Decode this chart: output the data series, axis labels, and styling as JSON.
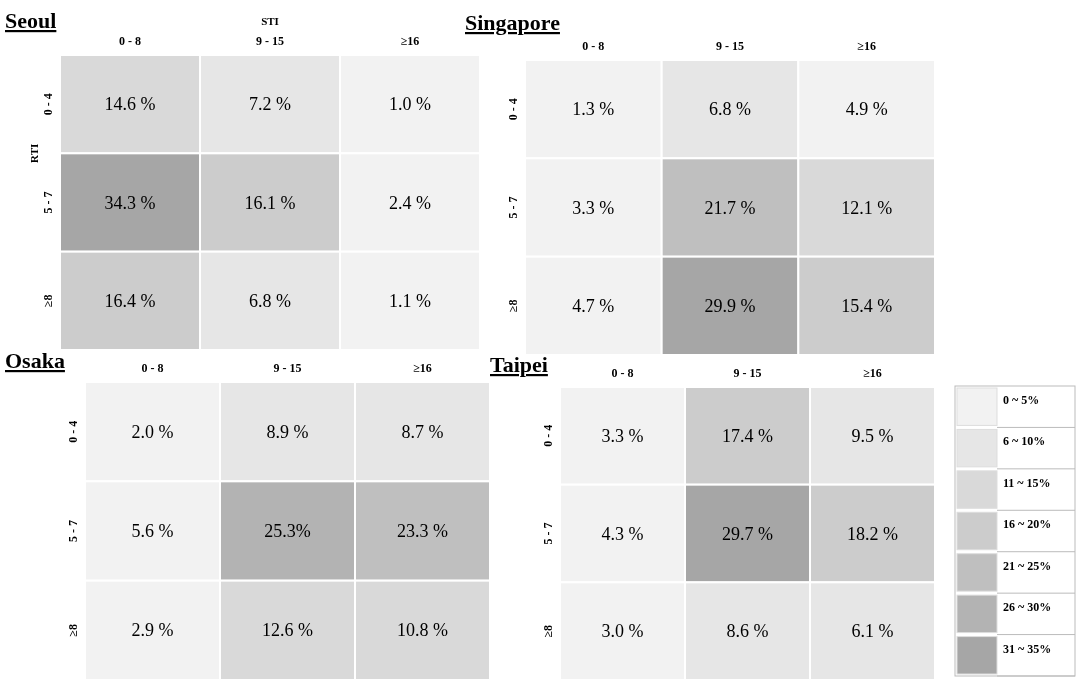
{
  "chart_data": [
    {
      "type": "heatmap",
      "title": "Seoul",
      "xlabel": "STI",
      "ylabel": "RTI",
      "categories": [
        "0 - 8",
        "9 - 15",
        "≥16"
      ],
      "y_categories": [
        "0 - 4",
        "5 - 7",
        "≥8"
      ],
      "cells": [
        [
          14.6,
          7.2,
          1.0
        ],
        [
          34.3,
          16.1,
          2.4
        ],
        [
          16.4,
          6.8,
          1.1
        ]
      ],
      "cell_labels": [
        [
          "14.6 %",
          "7.2 %",
          "1.0 %"
        ],
        [
          "34.3 %",
          "16.1 %",
          "2.4 %"
        ],
        [
          "16.4 %",
          "6.8 %",
          "1.1 %"
        ]
      ]
    },
    {
      "type": "heatmap",
      "title": "Singapore",
      "categories": [
        "0 - 8",
        "9 - 15",
        "≥16"
      ],
      "y_categories": [
        "0 - 4",
        "5 - 7",
        "≥8"
      ],
      "cells": [
        [
          1.3,
          6.8,
          4.9
        ],
        [
          3.3,
          21.7,
          12.1
        ],
        [
          4.7,
          29.9,
          15.4
        ]
      ],
      "cell_labels": [
        [
          "1.3 %",
          "6.8 %",
          "4.9 %"
        ],
        [
          "3.3 %",
          "21.7 %",
          "12.1 %"
        ],
        [
          "4.7 %",
          "29.9 %",
          "15.4 %"
        ]
      ]
    },
    {
      "type": "heatmap",
      "title": "Osaka",
      "categories": [
        "0 - 8",
        "9 - 15",
        "≥16"
      ],
      "y_categories": [
        "0 - 4",
        "5 - 7",
        "≥8"
      ],
      "cells": [
        [
          2.0,
          8.9,
          8.7
        ],
        [
          5.6,
          25.3,
          23.3
        ],
        [
          2.9,
          12.6,
          10.8
        ]
      ],
      "cell_labels": [
        [
          "2.0 %",
          "8.9 %",
          "8.7 %"
        ],
        [
          "5.6 %",
          "25.3%",
          "23.3 %"
        ],
        [
          "2.9 %",
          "12.6 %",
          "10.8 %"
        ]
      ]
    },
    {
      "type": "heatmap",
      "title": "Taipei",
      "categories": [
        "0 - 8",
        "9 - 15",
        "≥16"
      ],
      "y_categories": [
        "0 - 4",
        "5 - 7",
        "≥8"
      ],
      "cells": [
        [
          3.3,
          17.4,
          9.5
        ],
        [
          4.3,
          29.7,
          18.2
        ],
        [
          3.0,
          8.6,
          6.1
        ]
      ],
      "cell_labels": [
        [
          "3.3 %",
          "17.4 %",
          "9.5 %"
        ],
        [
          "4.3 %",
          "29.7 %",
          "18.2 %"
        ],
        [
          "3.0 %",
          "8.6 %",
          "6.1 %"
        ]
      ]
    },
    {
      "type": "other",
      "annotations": [
        "0 ~ 5%",
        "6 ~ 10%",
        "11 ~ 15%",
        "16 ~ 20%",
        "21 ~ 25%",
        "26 ~ 30%",
        "31 ~ 35%"
      ],
      "colors": [
        "#f2f2f2",
        "#e6e6e6",
        "#d9d9d9",
        "#cccccc",
        "#bfbfbf",
        "#b3b3b3",
        "#a6a6a6"
      ]
    }
  ]
}
